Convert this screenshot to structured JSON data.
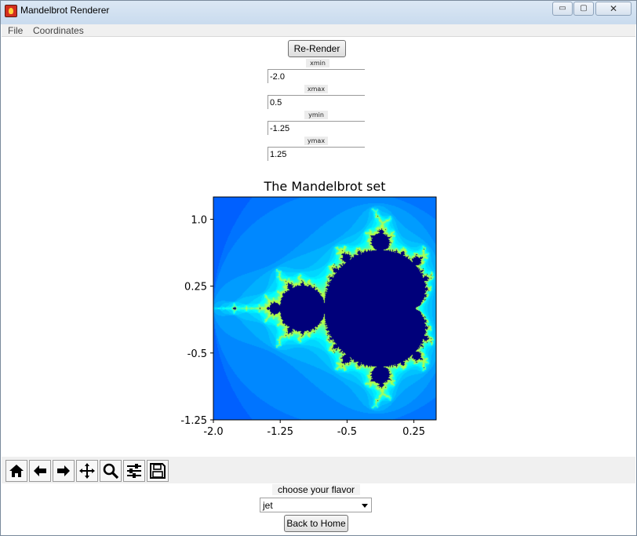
{
  "window": {
    "title": "Mandelbrot Renderer",
    "min_glyph": "▭",
    "max_glyph": "▢",
    "close_glyph": "✕"
  },
  "menu": {
    "items": [
      "File",
      "Coordinates"
    ]
  },
  "controls": {
    "rerender_label": "Re-Render",
    "fields": [
      {
        "label": "xmin",
        "value": "-2.0"
      },
      {
        "label": "xmax",
        "value": "0.5"
      },
      {
        "label": "ymin",
        "value": "-1.25"
      },
      {
        "label": "ymax",
        "value": "1.25"
      }
    ]
  },
  "chart_data": {
    "type": "heatmap",
    "title": "The Mandelbrot set",
    "xlabel": "",
    "ylabel": "",
    "xlim": [
      -2.0,
      0.5
    ],
    "ylim": [
      -1.25,
      1.25
    ],
    "x_ticks": [
      "-2.0",
      "-1.25",
      "-0.5",
      "0.25"
    ],
    "y_ticks": [
      "1.0",
      "0.25",
      "-0.5",
      "-1.25"
    ],
    "colormap": "jet",
    "inside_color": "#00007a",
    "background_color": "#0f3cff"
  },
  "toolbar": {
    "icons": [
      "home-icon",
      "back-arrow-icon",
      "forward-arrow-icon",
      "pan-icon",
      "zoom-icon",
      "configure-subplots-icon",
      "save-icon"
    ]
  },
  "flavor": {
    "label": "choose your flavor",
    "value": "jet"
  },
  "footer": {
    "home_label": "Back to Home"
  }
}
